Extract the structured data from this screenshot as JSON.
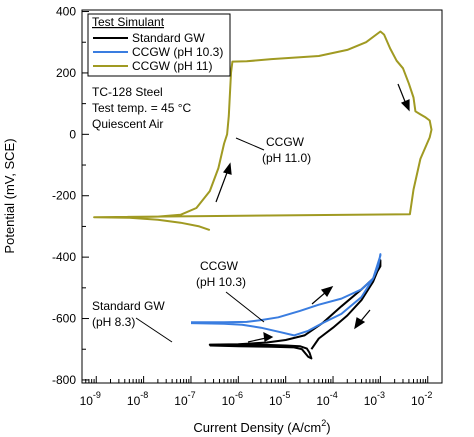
{
  "chart_data": {
    "type": "line",
    "xlabel": "Current Density (A/cm",
    "xlabel_sup": "2",
    "xlabel_end": ")",
    "ylabel": "Potential (mV, SCE)",
    "xscale": "log",
    "xlim": [
      5e-10,
      0.02
    ],
    "ylim": [
      -810,
      405
    ],
    "x_ticks": [
      1e-09,
      1e-08,
      1e-07,
      1e-06,
      1e-05,
      0.0001,
      0.001,
      0.01
    ],
    "x_tick_labels": [
      {
        "base": "10",
        "exp": "-9"
      },
      {
        "base": "10",
        "exp": "-8"
      },
      {
        "base": "10",
        "exp": "-7"
      },
      {
        "base": "10",
        "exp": "-6"
      },
      {
        "base": "10",
        "exp": "-5"
      },
      {
        "base": "10",
        "exp": "-4"
      },
      {
        "base": "10",
        "exp": "-3"
      },
      {
        "base": "10",
        "exp": "-2"
      }
    ],
    "y_ticks": [
      400,
      200,
      0,
      -200,
      -400,
      -600,
      -800
    ],
    "y_tick_labels": [
      "400",
      "200",
      "0",
      "-200",
      "-400",
      "-600",
      "-800"
    ],
    "legend": {
      "title": "Test Simulant",
      "placement": "top-left"
    },
    "series": [
      {
        "name": "Standard GW",
        "color": "#000000",
        "points": [
          [
            2.5e-07,
            -688
          ],
          [
            1e-06,
            -690
          ],
          [
            5e-06,
            -692
          ],
          [
            1.5e-05,
            -694
          ],
          [
            2.2e-05,
            -700
          ],
          [
            3e-05,
            -725
          ],
          [
            3.5e-05,
            -730
          ],
          [
            3.5e-05,
            -730
          ],
          [
            3.2e-05,
            -712
          ],
          [
            2.8e-05,
            -698
          ],
          [
            2e-05,
            -690
          ],
          [
            1e-05,
            -688
          ],
          [
            4e-06,
            -686
          ],
          [
            1e-06,
            -686
          ],
          [
            2.5e-07,
            -686
          ],
          [
            2.5e-07,
            -685
          ],
          [
            1e-06,
            -684
          ],
          [
            4e-06,
            -678
          ],
          [
            1e-05,
            -670
          ],
          [
            2.5e-05,
            -655
          ],
          [
            6e-05,
            -615
          ],
          [
            0.00015,
            -560
          ],
          [
            0.0004,
            -505
          ],
          [
            0.0007,
            -470
          ],
          [
            0.001,
            -430
          ],
          [
            0.001,
            -410
          ],
          [
            0.0009,
            -440
          ],
          [
            0.0007,
            -480
          ],
          [
            0.0004,
            -540
          ],
          [
            0.0002,
            -590
          ],
          [
            0.0001,
            -630
          ],
          [
            5e-05,
            -665
          ],
          [
            3.5e-05,
            -700
          ]
        ]
      },
      {
        "name": "CCGW (pH 10.3)",
        "color": "#3a7de0",
        "points": [
          [
            1e-07,
            -612
          ],
          [
            5e-07,
            -612
          ],
          [
            1.5e-06,
            -611
          ],
          [
            3e-06,
            -605
          ],
          [
            7e-06,
            -596
          ],
          [
            2e-05,
            -575
          ],
          [
            5e-05,
            -555
          ],
          [
            0.00015,
            -535
          ],
          [
            0.0004,
            -505
          ],
          [
            0.0007,
            -470
          ],
          [
            0.001,
            -395
          ],
          [
            0.001,
            -390
          ],
          [
            0.0009,
            -430
          ],
          [
            0.0007,
            -470
          ],
          [
            0.0004,
            -530
          ],
          [
            0.00015,
            -585
          ],
          [
            6e-05,
            -615
          ],
          [
            3e-05,
            -640
          ],
          [
            1.5e-05,
            -655
          ],
          [
            1.5e-05,
            -655
          ],
          [
            8e-06,
            -645
          ],
          [
            3e-06,
            -630
          ],
          [
            1.2e-06,
            -620
          ],
          [
            5e-07,
            -617
          ],
          [
            1e-07,
            -615
          ]
        ]
      },
      {
        "name": "CCGW (pH 11)",
        "color": "#a09a22",
        "points": [
          [
            9e-10,
            -270
          ],
          [
            5e-09,
            -270
          ],
          [
            2e-08,
            -268
          ],
          [
            6e-08,
            -262
          ],
          [
            1.3e-07,
            -240
          ],
          [
            2.5e-07,
            -185
          ],
          [
            3.8e-07,
            -110
          ],
          [
            5e-07,
            -30
          ],
          [
            5.8e-07,
            0
          ],
          [
            6.3e-07,
            60
          ],
          [
            7e-07,
            200
          ],
          [
            7.5e-07,
            237
          ],
          [
            1.5e-06,
            238
          ],
          [
            5e-06,
            245
          ],
          [
            5e-05,
            255
          ],
          [
            0.0002,
            275
          ],
          [
            0.0005,
            300
          ],
          [
            0.001,
            335
          ],
          [
            0.0012,
            325
          ],
          [
            0.0016,
            280
          ],
          [
            0.0022,
            240
          ],
          [
            0.003,
            215
          ],
          [
            0.004,
            165
          ],
          [
            0.005,
            120
          ],
          [
            0.0055,
            75
          ],
          [
            0.007,
            65
          ],
          [
            0.009,
            55
          ],
          [
            0.011,
            45
          ],
          [
            0.012,
            15
          ],
          [
            0.011,
            -10
          ],
          [
            0.007,
            -80
          ],
          [
            0.005,
            -180
          ],
          [
            0.0042,
            -260
          ],
          [
            9e-10,
            -270
          ],
          [
            5e-09,
            -272
          ],
          [
            2e-08,
            -278
          ],
          [
            6e-08,
            -288
          ],
          [
            1.5e-07,
            -300
          ],
          [
            2.5e-07,
            -312
          ]
        ]
      }
    ],
    "annotations": [
      {
        "lines": [
          "TC-128 Steel",
          "Test temp. = 45 °C",
          "Quiescent Air"
        ]
      },
      {
        "lines": [
          "CCGW",
          "(pH 11.0)"
        ]
      },
      {
        "lines": [
          "CCGW",
          "(pH 10.3)"
        ]
      },
      {
        "lines": [
          "Standard GW",
          "(pH 8.3)"
        ]
      }
    ]
  }
}
